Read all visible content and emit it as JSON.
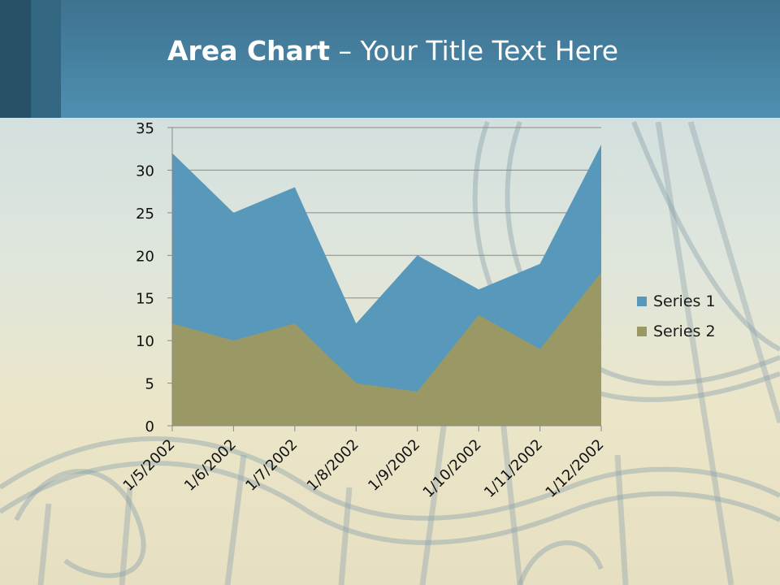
{
  "title": {
    "strong": "Area Chart",
    "rest": " – Your Title Text Here"
  },
  "chart_data": {
    "type": "area",
    "categories": [
      "1/5/2002",
      "1/6/2002",
      "1/7/2002",
      "1/8/2002",
      "1/9/2002",
      "1/10/2002",
      "1/11/2002",
      "1/12/2002"
    ],
    "series": [
      {
        "name": "Series 1",
        "values": [
          32,
          25,
          28,
          12,
          20,
          16,
          19,
          33
        ],
        "color": "#5898bb"
      },
      {
        "name": "Series 2",
        "values": [
          12,
          10,
          12,
          5,
          4,
          13,
          9,
          18
        ],
        "color": "#9a9965"
      }
    ],
    "ylim": [
      0,
      35
    ],
    "yticks": [
      0,
      5,
      10,
      15,
      20,
      25,
      30,
      35
    ],
    "grid": true,
    "legend_position": "right"
  }
}
